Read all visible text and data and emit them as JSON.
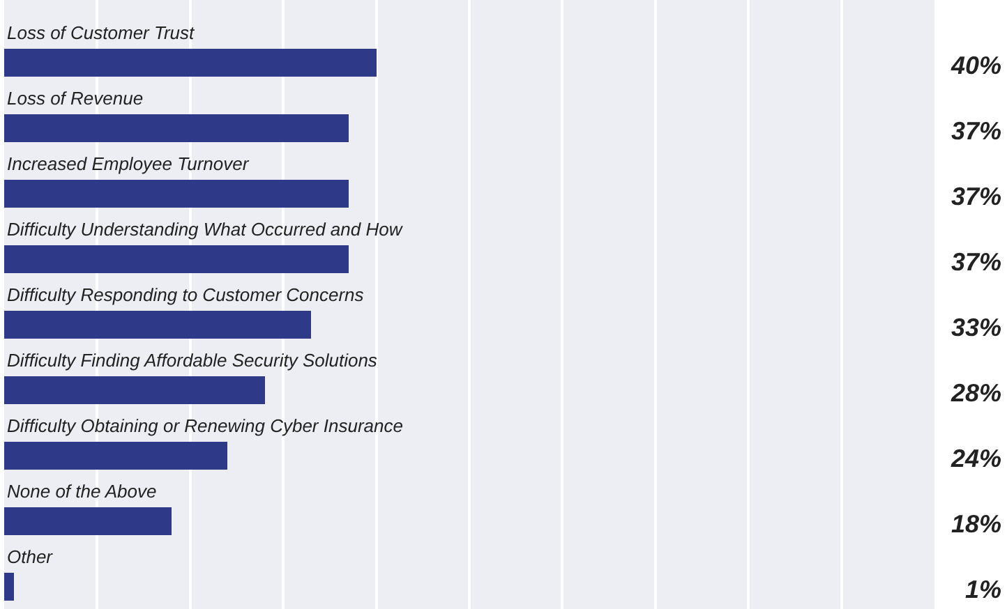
{
  "chart_data": {
    "type": "bar",
    "orientation": "horizontal",
    "categories": [
      "Loss of Customer Trust",
      "Loss of Revenue",
      "Increased Employee Turnover",
      "Difficulty Understanding What Occurred and How",
      "Difficulty Responding to Customer Concerns",
      "Difficulty Finding Affordable Security Solutions",
      "Difficulty Obtaining or Renewing Cyber Insurance",
      "None of the Above",
      "Other"
    ],
    "values": [
      40,
      37,
      37,
      37,
      33,
      28,
      24,
      18,
      1
    ],
    "value_labels": [
      "40%",
      "37%",
      "37%",
      "37%",
      "33%",
      "28%",
      "24%",
      "18%",
      "1%"
    ],
    "color": "#2e3a87",
    "xlim": [
      0,
      100
    ],
    "xticks": [
      {
        "value": 0,
        "label": null
      },
      {
        "value": 10,
        "label": null
      },
      {
        "value": 20,
        "label": null
      },
      {
        "value": 30,
        "label": null
      },
      {
        "value": 40,
        "label": null
      },
      {
        "value": 50,
        "label": null
      },
      {
        "value": 60,
        "label": null
      },
      {
        "value": 70,
        "label": null
      },
      {
        "value": 80,
        "label": null
      },
      {
        "value": 90,
        "label": null
      },
      {
        "value": 100,
        "label": null
      }
    ],
    "grid": "x"
  }
}
